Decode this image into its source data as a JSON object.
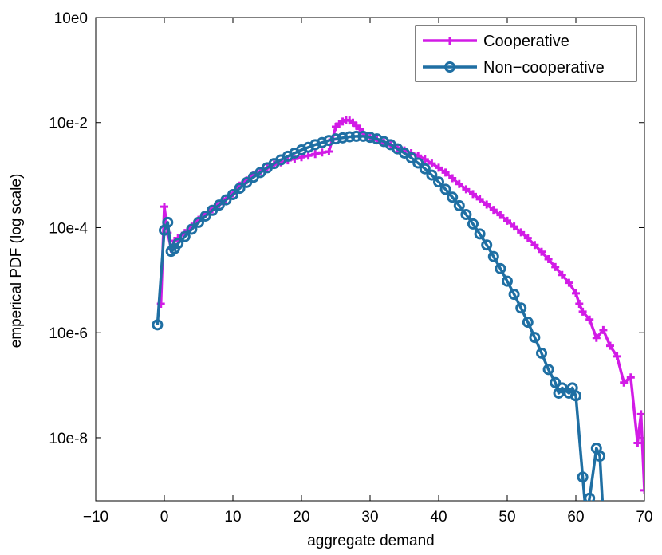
{
  "chart_data": {
    "type": "line",
    "title": "",
    "xlabel": "aggregate demand",
    "ylabel": "emperical PDF (log scale)",
    "xscale": "linear",
    "yscale": "log",
    "xlim": [
      -10,
      70
    ],
    "ylim_log10": [
      -9.2,
      0
    ],
    "x_ticks": [
      -10,
      0,
      10,
      20,
      30,
      40,
      50,
      60,
      70
    ],
    "x_tick_labels": [
      "−10",
      "0",
      "10",
      "20",
      "30",
      "40",
      "50",
      "60",
      "70"
    ],
    "y_ticks_log10": [
      0,
      -2,
      -4,
      -6,
      -8
    ],
    "y_tick_labels": [
      "10e0",
      "10e-2",
      "10e-4",
      "10e-6",
      "10e-8"
    ],
    "legend_position": "top-right",
    "series": [
      {
        "name": "Cooperative",
        "color": "#d21be6",
        "marker": "plus",
        "points": [
          [
            -0.5,
            -5.45
          ],
          [
            0,
            -3.6
          ],
          [
            0.5,
            -4.1
          ],
          [
            1,
            -4.4
          ],
          [
            1.5,
            -4.25
          ],
          [
            2,
            -4.2
          ],
          [
            3,
            -4.1
          ],
          [
            4,
            -3.98
          ],
          [
            5,
            -3.85
          ],
          [
            6,
            -3.75
          ],
          [
            7,
            -3.65
          ],
          [
            8,
            -3.55
          ],
          [
            9,
            -3.45
          ],
          [
            10,
            -3.35
          ],
          [
            11,
            -3.2
          ],
          [
            12,
            -3.1
          ],
          [
            13,
            -3.0
          ],
          [
            14,
            -2.93
          ],
          [
            15,
            -2.87
          ],
          [
            16,
            -2.8
          ],
          [
            17,
            -2.76
          ],
          [
            18,
            -2.72
          ],
          [
            19,
            -2.69
          ],
          [
            20,
            -2.66
          ],
          [
            21,
            -2.63
          ],
          [
            22,
            -2.6
          ],
          [
            23,
            -2.57
          ],
          [
            24,
            -2.55
          ],
          [
            24.5,
            -2.32
          ],
          [
            25,
            -2.08
          ],
          [
            25.5,
            -2.02
          ],
          [
            26,
            -1.98
          ],
          [
            26.5,
            -1.95
          ],
          [
            27,
            -1.96
          ],
          [
            27.5,
            -2.0
          ],
          [
            28,
            -2.06
          ],
          [
            28.5,
            -2.12
          ],
          [
            29,
            -2.2
          ],
          [
            30,
            -2.28
          ],
          [
            31,
            -2.33
          ],
          [
            32,
            -2.38
          ],
          [
            33,
            -2.43
          ],
          [
            34,
            -2.48
          ],
          [
            35,
            -2.53
          ],
          [
            36,
            -2.58
          ],
          [
            37,
            -2.63
          ],
          [
            38,
            -2.7
          ],
          [
            39,
            -2.78
          ],
          [
            40,
            -2.86
          ],
          [
            41,
            -2.95
          ],
          [
            42,
            -3.06
          ],
          [
            43,
            -3.17
          ],
          [
            44,
            -3.27
          ],
          [
            45,
            -3.36
          ],
          [
            46,
            -3.46
          ],
          [
            47,
            -3.56
          ],
          [
            48,
            -3.66
          ],
          [
            49,
            -3.76
          ],
          [
            50,
            -3.87
          ],
          [
            51,
            -3.98
          ],
          [
            52,
            -4.09
          ],
          [
            53,
            -4.2
          ],
          [
            54,
            -4.33
          ],
          [
            55,
            -4.46
          ],
          [
            56,
            -4.6
          ],
          [
            57,
            -4.75
          ],
          [
            58,
            -4.9
          ],
          [
            59,
            -5.05
          ],
          [
            60,
            -5.25
          ],
          [
            60.5,
            -5.45
          ],
          [
            61,
            -5.6
          ],
          [
            62,
            -5.75
          ],
          [
            63,
            -6.1
          ],
          [
            64,
            -5.95
          ],
          [
            65,
            -6.25
          ],
          [
            66,
            -6.45
          ],
          [
            67,
            -6.95
          ],
          [
            68,
            -6.85
          ],
          [
            69,
            -8.1
          ],
          [
            69.5,
            -7.55
          ],
          [
            70,
            -9.0
          ]
        ]
      },
      {
        "name": "Non-cooperative",
        "color": "#1f6fa3",
        "marker": "circle",
        "points": [
          [
            -1,
            -5.85
          ],
          [
            0,
            -4.05
          ],
          [
            0.5,
            -3.9
          ],
          [
            1,
            -4.45
          ],
          [
            1.5,
            -4.4
          ],
          [
            2,
            -4.3
          ],
          [
            3,
            -4.17
          ],
          [
            4,
            -4.03
          ],
          [
            5,
            -3.9
          ],
          [
            6,
            -3.78
          ],
          [
            7,
            -3.67
          ],
          [
            8,
            -3.57
          ],
          [
            9,
            -3.47
          ],
          [
            10,
            -3.37
          ],
          [
            11,
            -3.25
          ],
          [
            12,
            -3.14
          ],
          [
            13,
            -3.04
          ],
          [
            14,
            -2.95
          ],
          [
            15,
            -2.86
          ],
          [
            16,
            -2.78
          ],
          [
            17,
            -2.71
          ],
          [
            18,
            -2.64
          ],
          [
            19,
            -2.58
          ],
          [
            20,
            -2.52
          ],
          [
            21,
            -2.47
          ],
          [
            22,
            -2.42
          ],
          [
            23,
            -2.38
          ],
          [
            24,
            -2.34
          ],
          [
            25,
            -2.31
          ],
          [
            26,
            -2.29
          ],
          [
            27,
            -2.27
          ],
          [
            28,
            -2.26
          ],
          [
            29,
            -2.26
          ],
          [
            30,
            -2.28
          ],
          [
            31,
            -2.31
          ],
          [
            32,
            -2.36
          ],
          [
            33,
            -2.42
          ],
          [
            34,
            -2.5
          ],
          [
            35,
            -2.58
          ],
          [
            36,
            -2.67
          ],
          [
            37,
            -2.77
          ],
          [
            38,
            -2.88
          ],
          [
            39,
            -3.0
          ],
          [
            40,
            -3.13
          ],
          [
            41,
            -3.27
          ],
          [
            42,
            -3.42
          ],
          [
            43,
            -3.58
          ],
          [
            44,
            -3.75
          ],
          [
            45,
            -3.93
          ],
          [
            46,
            -4.12
          ],
          [
            47,
            -4.33
          ],
          [
            48,
            -4.55
          ],
          [
            49,
            -4.78
          ],
          [
            50,
            -5.02
          ],
          [
            51,
            -5.27
          ],
          [
            52,
            -5.53
          ],
          [
            53,
            -5.8
          ],
          [
            54,
            -6.09
          ],
          [
            55,
            -6.39
          ],
          [
            56,
            -6.7
          ],
          [
            57,
            -6.95
          ],
          [
            57.5,
            -7.15
          ],
          [
            58,
            -7.05
          ],
          [
            59,
            -7.15
          ],
          [
            59.5,
            -7.05
          ],
          [
            60,
            -7.2
          ],
          [
            61,
            -8.75
          ],
          [
            61.5,
            -9.5
          ],
          [
            62,
            -9.15
          ],
          [
            63,
            -8.2
          ],
          [
            63.5,
            -8.35
          ],
          [
            64,
            -9.5
          ]
        ]
      }
    ]
  }
}
